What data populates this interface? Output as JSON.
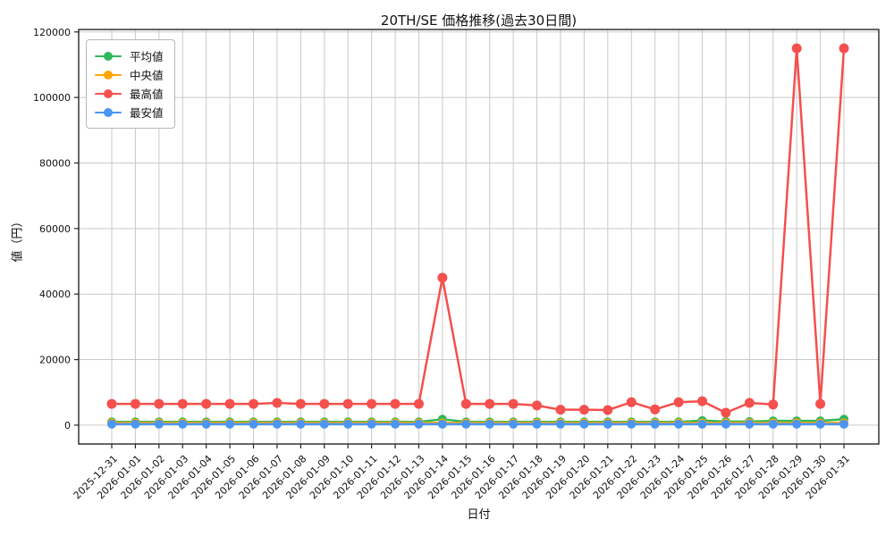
{
  "chart_data": {
    "type": "line",
    "title": "20TH/SE 価格推移(過去30日間)",
    "xlabel": "日付",
    "ylabel": "値（円）",
    "grid": true,
    "legend_position": "upper-left",
    "ylim": [
      -5750,
      120750
    ],
    "yticks": [
      0,
      20000,
      40000,
      60000,
      80000,
      100000,
      120000
    ],
    "categories": [
      "2025-12-31",
      "2026-01-01",
      "2026-01-02",
      "2026-01-03",
      "2026-01-04",
      "2026-01-05",
      "2026-01-06",
      "2026-01-07",
      "2026-01-08",
      "2026-01-09",
      "2026-01-10",
      "2026-01-11",
      "2026-01-12",
      "2026-01-13",
      "2026-01-14",
      "2026-01-15",
      "2026-01-16",
      "2026-01-17",
      "2026-01-18",
      "2026-01-19",
      "2026-01-20",
      "2026-01-21",
      "2026-01-22",
      "2026-01-23",
      "2026-01-24",
      "2026-01-25",
      "2026-01-26",
      "2026-01-27",
      "2026-01-28",
      "2026-01-29",
      "2026-01-30",
      "2026-01-31"
    ],
    "series": [
      {
        "key": "average",
        "name": "平均値",
        "color": "#2eb85c",
        "values": [
          1000,
          1000,
          1000,
          1000,
          1000,
          1000,
          1000,
          1000,
          1000,
          1000,
          1000,
          1000,
          1000,
          1000,
          1800,
          1000,
          1000,
          1000,
          1000,
          1000,
          1000,
          1000,
          1000,
          1000,
          1000,
          1400,
          1100,
          1100,
          1300,
          1300,
          1300,
          1800
        ]
      },
      {
        "key": "median",
        "name": "中央値",
        "color": "#ffa502",
        "values": [
          700,
          700,
          700,
          700,
          700,
          700,
          700,
          700,
          700,
          700,
          700,
          700,
          700,
          700,
          700,
          700,
          700,
          700,
          700,
          700,
          700,
          700,
          700,
          700,
          700,
          700,
          700,
          700,
          700,
          700,
          700,
          700
        ]
      },
      {
        "key": "max",
        "name": "最高値",
        "color": "#f4504d",
        "values": [
          6500,
          6500,
          6500,
          6500,
          6500,
          6500,
          6500,
          6800,
          6500,
          6500,
          6500,
          6500,
          6500,
          6500,
          45000,
          6500,
          6500,
          6500,
          6000,
          4700,
          4700,
          4600,
          7000,
          4800,
          7000,
          7300,
          3800,
          6800,
          6300,
          115000,
          6500,
          115000
        ]
      },
      {
        "key": "min",
        "name": "最安値",
        "color": "#4b96f3",
        "values": [
          300,
          300,
          300,
          300,
          300,
          300,
          300,
          300,
          300,
          300,
          300,
          300,
          300,
          300,
          300,
          300,
          300,
          300,
          300,
          300,
          300,
          300,
          300,
          300,
          300,
          300,
          300,
          300,
          300,
          300,
          300,
          300
        ]
      }
    ]
  }
}
